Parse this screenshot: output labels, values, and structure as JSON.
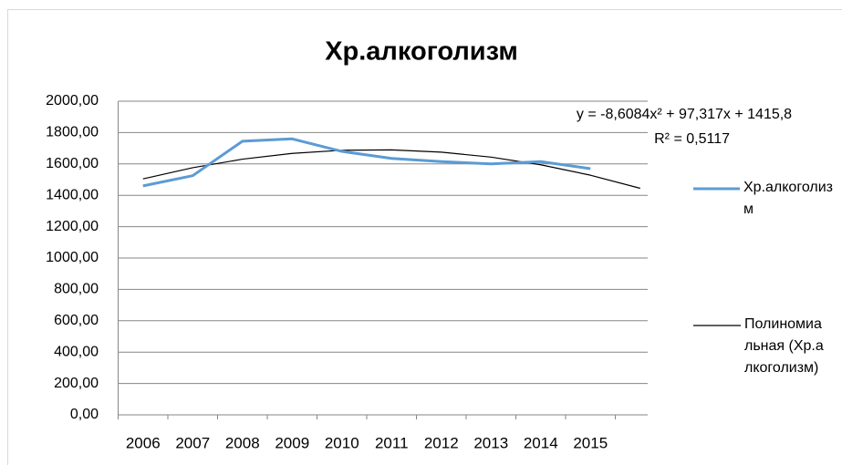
{
  "chart_data": {
    "type": "line",
    "title": "Хр.алкоголизм",
    "categories": [
      "2006",
      "2007",
      "2008",
      "2009",
      "2010",
      "2011",
      "2012",
      "2013",
      "2014",
      "2015",
      null
    ],
    "series": [
      {
        "name": "Хр.алкоголизм",
        "color": "#5b9bd5",
        "values": [
          1460,
          1525,
          1745,
          1760,
          1680,
          1635,
          1615,
          1600,
          1615,
          1570,
          null
        ]
      },
      {
        "name": "Полиномиальная (Хр.алкоголизм)",
        "color": "#000000",
        "values": [
          1504.5,
          1576.0,
          1630.3,
          1667.3,
          1687.2,
          1689.8,
          1675.2,
          1643.4,
          1594.4,
          1528.2,
          1444.7
        ]
      }
    ],
    "annotations": [
      "y = -8,6084x² + 97,317x + 1415,8",
      "R² = 0,5117"
    ],
    "ylim": [
      0,
      2000
    ],
    "yticks": [
      {
        "value": 0,
        "label": "0,00"
      },
      {
        "value": 200,
        "label": "200,00"
      },
      {
        "value": 400,
        "label": "400,00"
      },
      {
        "value": 600,
        "label": "600,00"
      },
      {
        "value": 800,
        "label": "800,00"
      },
      {
        "value": 1000,
        "label": "1000,00"
      },
      {
        "value": 1200,
        "label": "1200,00"
      },
      {
        "value": 1400,
        "label": "1400,00"
      },
      {
        "value": 1600,
        "label": "1600,00"
      },
      {
        "value": 1800,
        "label": "1800,00"
      },
      {
        "value": 2000,
        "label": "2000,00"
      }
    ],
    "grid": true,
    "legend": "right"
  }
}
